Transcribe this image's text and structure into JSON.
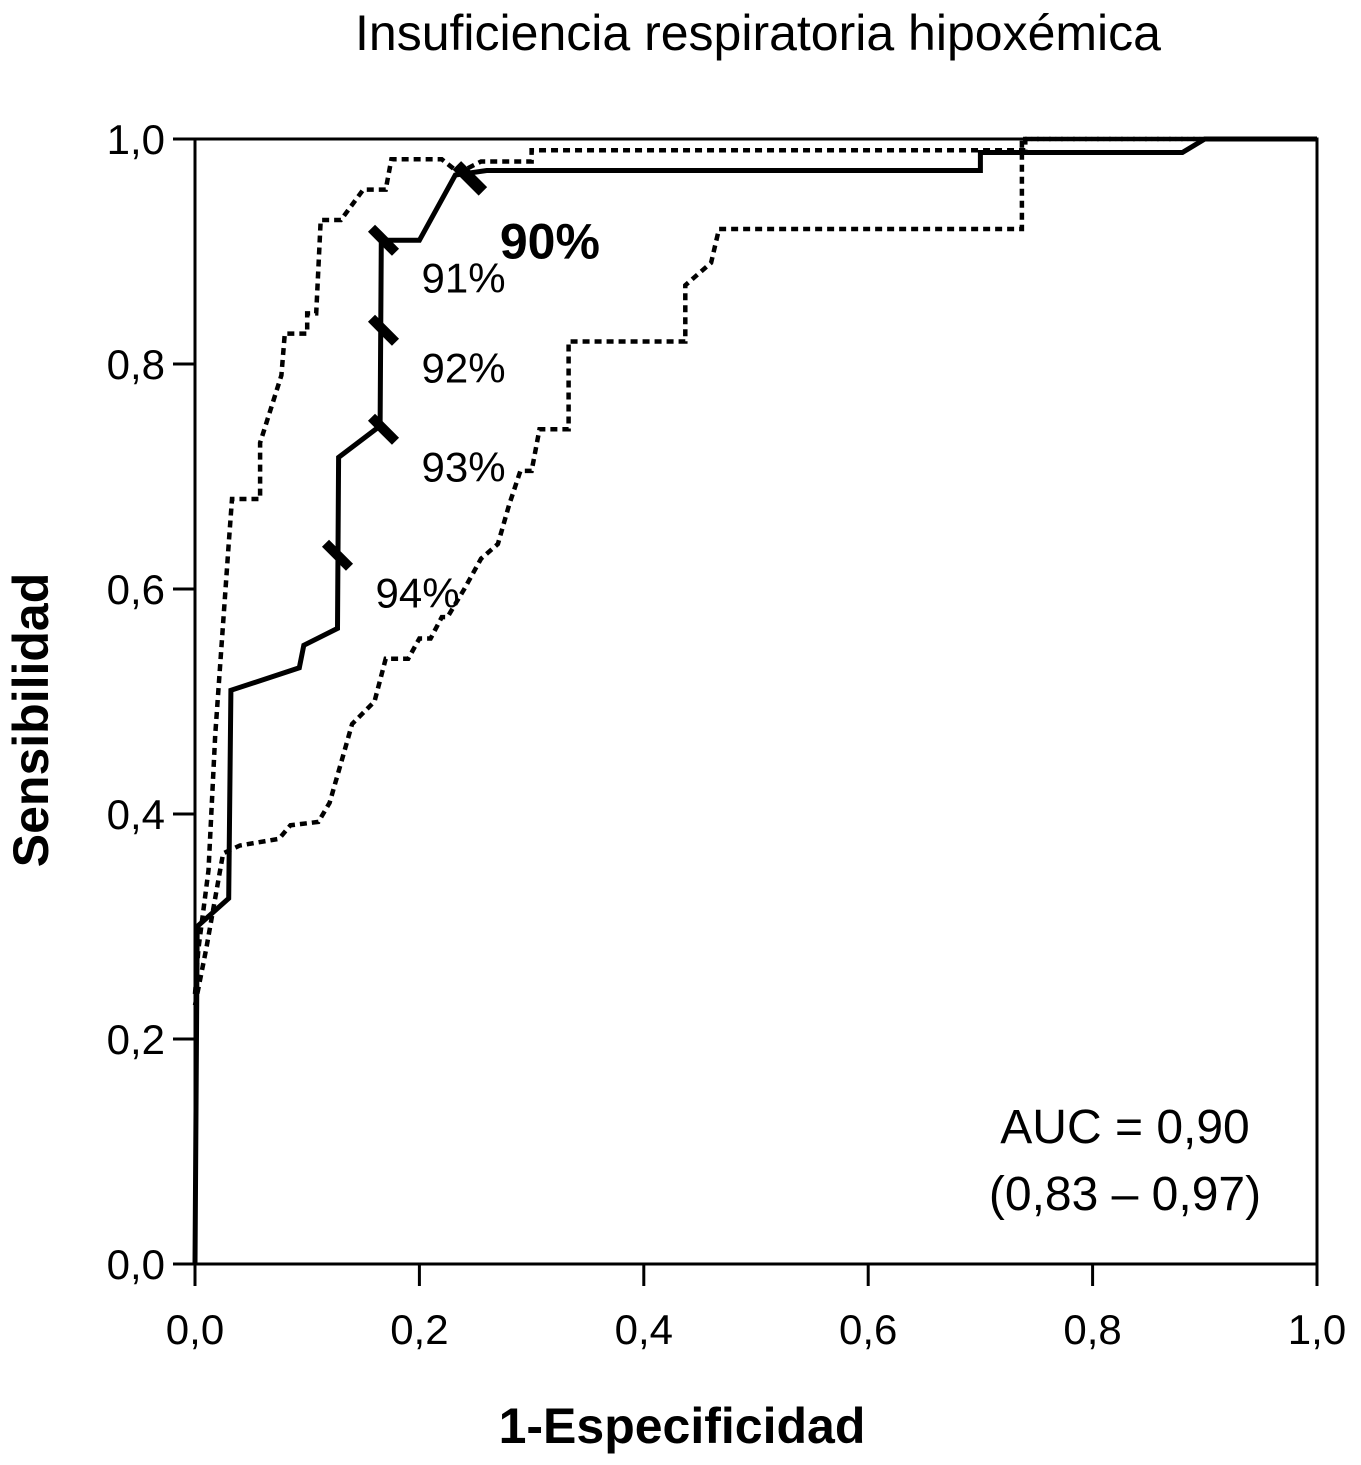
{
  "chart_data": {
    "type": "line",
    "title": "Insuficiencia respiratoria hipoxémica",
    "xlabel": "1-Especificidad",
    "ylabel": "Sensibilidad",
    "xlim": [
      0,
      1
    ],
    "ylim": [
      0,
      1
    ],
    "xticks": [
      "0,0",
      "0,2",
      "0,4",
      "0,6",
      "0,8",
      "1,0"
    ],
    "yticks": [
      "0,0",
      "0,2",
      "0,4",
      "0,6",
      "0,8",
      "1,0"
    ],
    "grid": false,
    "series": [
      {
        "style": "solid",
        "points": [
          [
            0,
            0
          ],
          [
            0.002,
            0.3
          ],
          [
            0.03,
            0.325
          ],
          [
            0.032,
            0.51
          ],
          [
            0.093,
            0.53
          ],
          [
            0.097,
            0.55
          ],
          [
            0.127,
            0.565
          ],
          [
            0.128,
            0.717
          ],
          [
            0.165,
            0.745
          ],
          [
            0.166,
            0.91
          ],
          [
            0.2,
            0.91
          ],
          [
            0.232,
            0.968
          ],
          [
            0.26,
            0.972
          ],
          [
            0.7,
            0.972
          ],
          [
            0.7,
            0.988
          ],
          [
            0.88,
            0.988
          ],
          [
            0.9,
            1
          ],
          [
            1,
            1
          ]
        ]
      },
      {
        "style": "dotted",
        "points": [
          [
            0,
            0.24
          ],
          [
            0.003,
            0.28
          ],
          [
            0.012,
            0.35
          ],
          [
            0.018,
            0.47
          ],
          [
            0.03,
            0.64
          ],
          [
            0.033,
            0.68
          ],
          [
            0.058,
            0.68
          ],
          [
            0.058,
            0.73
          ],
          [
            0.077,
            0.79
          ],
          [
            0.08,
            0.827
          ],
          [
            0.1,
            0.827
          ],
          [
            0.1,
            0.845
          ],
          [
            0.108,
            0.845
          ],
          [
            0.112,
            0.928
          ],
          [
            0.13,
            0.928
          ],
          [
            0.15,
            0.955
          ],
          [
            0.17,
            0.955
          ],
          [
            0.175,
            0.982
          ],
          [
            0.22,
            0.982
          ],
          [
            0.235,
            0.97
          ],
          [
            0.255,
            0.98
          ],
          [
            0.3,
            0.98
          ],
          [
            0.3,
            0.99
          ],
          [
            0.74,
            0.99
          ],
          [
            0.74,
            1
          ],
          [
            1,
            1
          ]
        ]
      },
      {
        "style": "dotted",
        "points": [
          [
            0,
            0.23
          ],
          [
            0.01,
            0.28
          ],
          [
            0.025,
            0.365
          ],
          [
            0.04,
            0.372
          ],
          [
            0.075,
            0.378
          ],
          [
            0.085,
            0.39
          ],
          [
            0.11,
            0.393
          ],
          [
            0.12,
            0.41
          ],
          [
            0.13,
            0.445
          ],
          [
            0.14,
            0.48
          ],
          [
            0.16,
            0.5
          ],
          [
            0.17,
            0.538
          ],
          [
            0.19,
            0.538
          ],
          [
            0.2,
            0.556
          ],
          [
            0.21,
            0.556
          ],
          [
            0.22,
            0.575
          ],
          [
            0.225,
            0.575
          ],
          [
            0.24,
            0.6
          ],
          [
            0.255,
            0.627
          ],
          [
            0.27,
            0.64
          ],
          [
            0.28,
            0.675
          ],
          [
            0.29,
            0.705
          ],
          [
            0.3,
            0.705
          ],
          [
            0.307,
            0.742
          ],
          [
            0.333,
            0.742
          ],
          [
            0.333,
            0.82
          ],
          [
            0.437,
            0.82
          ],
          [
            0.437,
            0.87
          ],
          [
            0.46,
            0.89
          ],
          [
            0.467,
            0.92
          ],
          [
            0.737,
            0.92
          ],
          [
            0.737,
            1
          ],
          [
            1,
            1
          ]
        ]
      }
    ],
    "threshold_markers": [
      {
        "label": "90%",
        "x": 0.245,
        "y": 0.965,
        "bold": true
      },
      {
        "label": "91%",
        "x": 0.168,
        "y": 0.91
      },
      {
        "label": "92%",
        "x": 0.168,
        "y": 0.83
      },
      {
        "label": "93%",
        "x": 0.168,
        "y": 0.742
      },
      {
        "label": "94%",
        "x": 0.127,
        "y": 0.63
      }
    ],
    "annotation": {
      "line1": "AUC = 0,90",
      "line2": "(0,83 – 0,97)"
    }
  }
}
